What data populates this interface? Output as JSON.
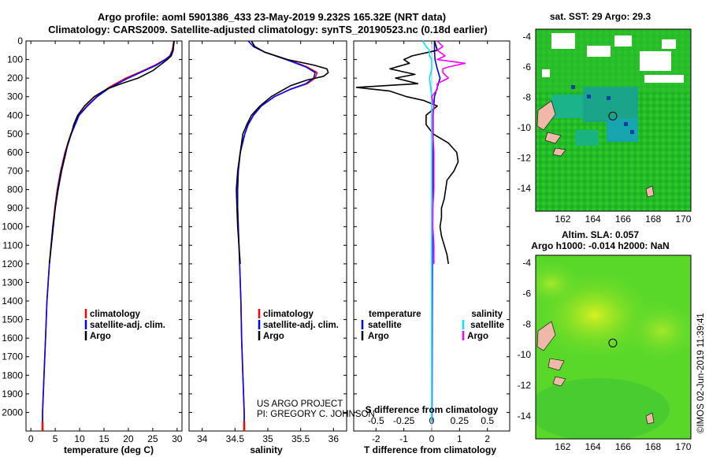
{
  "title_line1": "Argo profile: aoml 5901386_433 23-May-2019 9.232S 165.32E (NRT data)",
  "title_line2": "Climatology: CARS2009. Satellite-adjusted climatology: synTS_20190523.nc (0.18d earlier)",
  "credit_line1": "US ARGO PROJECT",
  "credit_line2": "PI: GREGORY C. JOHNSON",
  "stamp": "©IMOS 02-Jun-2019 11:39:41",
  "colors": {
    "climatology": "#ff0000",
    "satellite": "#0000ff",
    "argo": "#000000",
    "sat_salinity": "#00e5ff",
    "argo_salinity": "#ff00ff"
  },
  "chart_data": [
    {
      "id": "temperature",
      "type": "line",
      "xlabel": "temperature (deg C)",
      "ylabel": "",
      "xlim": [
        -1,
        31
      ],
      "ylim": [
        2100,
        0
      ],
      "xticks": [
        0,
        5,
        10,
        15,
        20,
        25,
        30
      ],
      "yticks": [
        0,
        100,
        200,
        300,
        400,
        500,
        600,
        700,
        800,
        900,
        1000,
        1100,
        1200,
        1300,
        1400,
        1500,
        1600,
        1700,
        1800,
        1900,
        2000
      ],
      "legend": [
        "climatology",
        "satellite-adj. clim.",
        "Argo"
      ],
      "series": [
        {
          "name": "climatology",
          "depth": [
            0,
            20,
            50,
            80,
            100,
            130,
            160,
            200,
            250,
            300,
            350,
            400,
            450,
            500,
            600,
            700,
            800,
            900,
            1000,
            1200,
            1400,
            1600,
            1800,
            2000,
            2050
          ],
          "values": [
            29.3,
            29.2,
            29,
            28.5,
            27.5,
            25.5,
            23,
            19.5,
            16,
            13.5,
            11.5,
            9.8,
            9,
            8.2,
            7,
            6.1,
            5.4,
            4.9,
            4.5,
            3.8,
            3.3,
            3,
            2.7,
            2.4,
            2.4
          ]
        },
        {
          "name": "satellite-adj. clim.",
          "depth": [
            0,
            20,
            50,
            80,
            100,
            130,
            160,
            200,
            250,
            300,
            350,
            400,
            450,
            500,
            600,
            700,
            800,
            900,
            1000,
            1200,
            1400,
            1600,
            1800,
            2000,
            2050
          ],
          "values": [
            29.4,
            29.3,
            29.1,
            28.6,
            27.6,
            25.8,
            23.3,
            20,
            16.3,
            13.6,
            11.6,
            9.9,
            9.1,
            8.3,
            7.1,
            6.2,
            5.5,
            5,
            4.5,
            3.8,
            3.3,
            3,
            2.7,
            2.4,
            2.4
          ]
        },
        {
          "name": "Argo",
          "depth": [
            0,
            20,
            50,
            80,
            100,
            130,
            160,
            200,
            230,
            260,
            300,
            350,
            400,
            450,
            500,
            550,
            600,
            700,
            800,
            900,
            1000,
            1100,
            1200
          ],
          "values": [
            29.4,
            29.3,
            29.2,
            28.8,
            28,
            26.5,
            25,
            22,
            18.5,
            15.5,
            13,
            11,
            9.6,
            8.8,
            8.3,
            7.6,
            7.2,
            6.3,
            5.6,
            5,
            4.6,
            4.2,
            3.8
          ]
        }
      ]
    },
    {
      "id": "salinity",
      "type": "line",
      "xlabel": "salinity",
      "xlim": [
        33.8,
        36.2
      ],
      "ylim": [
        2100,
        0
      ],
      "xticks": [
        34,
        34.5,
        35,
        35.5,
        36
      ],
      "xticklabels": [
        "34",
        "34.5",
        "35",
        "35.5",
        "36"
      ],
      "legend": [
        "climatology",
        "satellite-adj. clim.",
        "Argo"
      ],
      "series": [
        {
          "name": "climatology",
          "depth": [
            0,
            30,
            60,
            100,
            140,
            170,
            200,
            230,
            260,
            300,
            350,
            400,
            450,
            500,
            600,
            700,
            800,
            900,
            1000,
            1200,
            1400,
            1600,
            1800,
            2000,
            2050
          ],
          "values": [
            34.75,
            34.8,
            34.95,
            35.3,
            35.6,
            35.75,
            35.72,
            35.6,
            35.35,
            35.1,
            34.9,
            34.78,
            34.7,
            34.65,
            34.58,
            34.55,
            34.54,
            34.54,
            34.55,
            34.57,
            34.59,
            34.6,
            34.62,
            34.64,
            34.64
          ]
        },
        {
          "name": "satellite-adj. clim.",
          "depth": [
            0,
            30,
            60,
            100,
            140,
            170,
            200,
            230,
            260,
            300,
            350,
            400,
            450,
            500,
            600,
            700,
            800,
            900,
            1000,
            1200,
            1400,
            1600,
            1800,
            2000,
            2050
          ],
          "values": [
            34.7,
            34.78,
            34.95,
            35.28,
            35.58,
            35.72,
            35.7,
            35.58,
            35.34,
            35.1,
            34.9,
            34.78,
            34.7,
            34.65,
            34.58,
            34.55,
            34.54,
            34.54,
            34.55,
            34.57,
            34.59,
            34.6,
            34.62,
            34.64,
            34.64
          ]
        },
        {
          "name": "Argo",
          "depth": [
            0,
            30,
            60,
            100,
            130,
            150,
            170,
            190,
            210,
            240,
            270,
            300,
            350,
            400,
            450,
            500,
            600,
            700,
            800,
            900,
            1000,
            1100,
            1200
          ],
          "values": [
            34.75,
            34.8,
            34.95,
            35.3,
            35.7,
            35.9,
            35.92,
            35.85,
            35.6,
            35.35,
            35.2,
            35.05,
            34.88,
            34.75,
            34.68,
            34.62,
            34.58,
            34.54,
            34.52,
            34.53,
            34.54,
            34.56,
            34.58
          ]
        }
      ]
    },
    {
      "id": "difference",
      "type": "line",
      "xlabel": "T difference from climatology",
      "x2label": "S difference from climatology",
      "xlim": [
        -2.8,
        2.8
      ],
      "ylim": [
        2100,
        0
      ],
      "xticks": [
        -2,
        -1,
        0,
        1,
        2
      ],
      "xticklabels": [
        "-2",
        "-1",
        "0",
        "1",
        "2"
      ],
      "x2ticks": [
        -0.5,
        -0.25,
        0,
        0.25,
        0.5
      ],
      "x2ticklabels": [
        "-0.5",
        "-0.25",
        "0",
        "0.25",
        "0.5"
      ],
      "x2lim": [
        -0.7,
        0.7
      ],
      "legend_temperature_title": "temperature",
      "legend_salinity_title": "salinity",
      "legend_temperature": [
        "satellite",
        "Argo"
      ],
      "legend_salinity": [
        "satellite",
        "Argo"
      ],
      "series": [
        {
          "name": "T satellite",
          "depth": [
            0,
            50,
            100,
            150,
            200,
            250,
            300,
            400,
            500,
            600,
            800,
            1000,
            1500,
            2000,
            2050
          ],
          "values": [
            0.1,
            0.1,
            0.12,
            0.2,
            0.3,
            0.2,
            0.1,
            0.05,
            0.05,
            0.05,
            0.05,
            0.03,
            0.02,
            0.01,
            0.01
          ]
        },
        {
          "name": "T Argo",
          "depth": [
            0,
            50,
            80,
            100,
            120,
            150,
            180,
            200,
            230,
            250,
            270,
            300,
            320,
            350,
            400,
            450,
            500,
            550,
            600,
            650,
            700,
            750,
            800,
            850,
            900,
            950,
            1000,
            1050,
            1100,
            1150,
            1200
          ],
          "values": [
            0.1,
            0.2,
            -0.7,
            -1,
            -0.8,
            -1.5,
            -0.6,
            -1.3,
            -0.5,
            -2.7,
            -1.5,
            -0.9,
            -0.3,
            0.2,
            -0.2,
            -0.2,
            0.05,
            0.6,
            0.9,
            0.95,
            0.8,
            0.55,
            0.5,
            0.45,
            0.35,
            0.35,
            0.3,
            0.35,
            0.45,
            0.55,
            0.6
          ]
        },
        {
          "name": "S satellite",
          "depth": [
            0,
            30,
            50,
            80,
            100,
            150,
            200,
            250,
            300,
            400,
            500,
            700,
            1000,
            1500,
            2000,
            2050
          ],
          "values": [
            -0.08,
            -0.05,
            -0.02,
            -0.02,
            0,
            0,
            -0.02,
            -0.01,
            0,
            0,
            0,
            0,
            0,
            0,
            0,
            0
          ]
        },
        {
          "name": "S Argo",
          "depth": [
            0,
            30,
            50,
            80,
            100,
            120,
            140,
            150,
            170,
            200,
            230,
            260,
            300,
            350,
            400,
            500,
            600,
            700,
            800,
            900,
            1000,
            1100,
            1200
          ],
          "values": [
            0.05,
            0.1,
            0.05,
            0.12,
            0.05,
            0.3,
            0.15,
            0.1,
            0.1,
            0.15,
            0.05,
            0.05,
            0,
            0.02,
            0.01,
            0.01,
            0.02,
            0.02,
            0.02,
            0.01,
            0.01,
            0.02,
            0.02
          ]
        }
      ]
    },
    {
      "id": "sst_map",
      "type": "heatmap",
      "title": "sat. SST: 29 Argo: 29.3",
      "xticks": [
        162,
        164,
        166,
        168,
        170
      ],
      "yticks": [
        -4,
        -6,
        -8,
        -10,
        -12,
        -14
      ],
      "xlim": [
        160.2,
        170.5
      ],
      "ylim": [
        -15.5,
        -3.5
      ],
      "float_position": [
        165.32,
        -9.232
      ]
    },
    {
      "id": "sla_map",
      "type": "heatmap",
      "title_line1": "Altim. SLA: 0.057",
      "title_line2": "Argo h1000: -0.014 h2000: NaN",
      "xticks": [
        162,
        164,
        166,
        168,
        170
      ],
      "yticks": [
        -4,
        -6,
        -8,
        -10,
        -12,
        -14
      ],
      "xlim": [
        160.2,
        170.5
      ],
      "ylim": [
        -15.5,
        -3.5
      ],
      "float_position": [
        165.32,
        -9.232
      ]
    }
  ]
}
